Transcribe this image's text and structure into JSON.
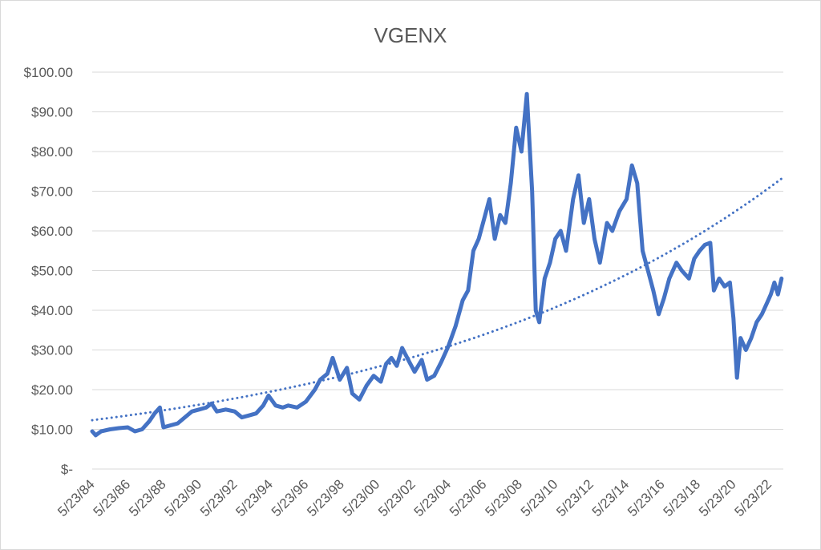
{
  "chart_data": {
    "type": "line",
    "title": "VGENX",
    "xlabel": "",
    "ylabel": "",
    "ylim": [
      0,
      100
    ],
    "y_ticks": [
      {
        "value": 0,
        "label": "$-"
      },
      {
        "value": 10,
        "label": "$10.00"
      },
      {
        "value": 20,
        "label": "$20.00"
      },
      {
        "value": 30,
        "label": "$30.00"
      },
      {
        "value": 40,
        "label": "$40.00"
      },
      {
        "value": 50,
        "label": "$50.00"
      },
      {
        "value": 60,
        "label": "$60.00"
      },
      {
        "value": 70,
        "label": "$70.00"
      },
      {
        "value": 80,
        "label": "$80.00"
      },
      {
        "value": 90,
        "label": "$90.00"
      },
      {
        "value": 100,
        "label": "$100.00"
      }
    ],
    "x_ticks": [
      {
        "year": 1984,
        "label": "5/23/84"
      },
      {
        "year": 1986,
        "label": "5/23/86"
      },
      {
        "year": 1988,
        "label": "5/23/88"
      },
      {
        "year": 1990,
        "label": "5/23/90"
      },
      {
        "year": 1992,
        "label": "5/23/92"
      },
      {
        "year": 1994,
        "label": "5/23/94"
      },
      {
        "year": 1996,
        "label": "5/23/96"
      },
      {
        "year": 1998,
        "label": "5/23/98"
      },
      {
        "year": 2000,
        "label": "5/23/00"
      },
      {
        "year": 2002,
        "label": "5/23/02"
      },
      {
        "year": 2004,
        "label": "5/23/04"
      },
      {
        "year": 2006,
        "label": "5/23/06"
      },
      {
        "year": 2008,
        "label": "5/23/08"
      },
      {
        "year": 2010,
        "label": "5/23/10"
      },
      {
        "year": 2012,
        "label": "5/23/12"
      },
      {
        "year": 2014,
        "label": "5/23/14"
      },
      {
        "year": 2016,
        "label": "5/23/16"
      },
      {
        "year": 2018,
        "label": "5/23/18"
      },
      {
        "year": 2020,
        "label": "5/23/20"
      },
      {
        "year": 2022,
        "label": "5/23/22"
      }
    ],
    "xlim": [
      1984,
      2022.8
    ],
    "grid": true,
    "legend": "none",
    "series": [
      {
        "values": [
          [
            1984.0,
            9.5
          ],
          [
            1984.2,
            8.5
          ],
          [
            1984.5,
            9.5
          ],
          [
            1985.0,
            10.0
          ],
          [
            1985.5,
            10.3
          ],
          [
            1986.0,
            10.5
          ],
          [
            1986.4,
            9.5
          ],
          [
            1986.8,
            10.0
          ],
          [
            1987.2,
            12.0
          ],
          [
            1987.5,
            14.0
          ],
          [
            1987.8,
            15.5
          ],
          [
            1988.0,
            10.5
          ],
          [
            1988.4,
            11.0
          ],
          [
            1988.8,
            11.5
          ],
          [
            1989.2,
            13.0
          ],
          [
            1989.6,
            14.5
          ],
          [
            1990.0,
            15.0
          ],
          [
            1990.4,
            15.5
          ],
          [
            1990.7,
            16.5
          ],
          [
            1991.0,
            14.5
          ],
          [
            1991.5,
            15.0
          ],
          [
            1992.0,
            14.5
          ],
          [
            1992.4,
            13.0
          ],
          [
            1992.8,
            13.5
          ],
          [
            1993.2,
            14.0
          ],
          [
            1993.6,
            16.0
          ],
          [
            1993.9,
            18.5
          ],
          [
            1994.3,
            16.0
          ],
          [
            1994.7,
            15.5
          ],
          [
            1995.0,
            16.0
          ],
          [
            1995.5,
            15.5
          ],
          [
            1996.0,
            17.0
          ],
          [
            1996.5,
            20.0
          ],
          [
            1996.8,
            22.5
          ],
          [
            1997.2,
            24.0
          ],
          [
            1997.5,
            28.0
          ],
          [
            1997.9,
            22.5
          ],
          [
            1998.3,
            25.5
          ],
          [
            1998.6,
            19.0
          ],
          [
            1999.0,
            17.5
          ],
          [
            1999.4,
            21.0
          ],
          [
            1999.8,
            23.5
          ],
          [
            2000.2,
            22.0
          ],
          [
            2000.5,
            26.5
          ],
          [
            2000.8,
            28.0
          ],
          [
            2001.1,
            26.0
          ],
          [
            2001.4,
            30.5
          ],
          [
            2001.8,
            27.0
          ],
          [
            2002.1,
            24.5
          ],
          [
            2002.5,
            27.5
          ],
          [
            2002.8,
            22.5
          ],
          [
            2003.2,
            23.5
          ],
          [
            2003.6,
            27.0
          ],
          [
            2004.0,
            31.0
          ],
          [
            2004.4,
            36.0
          ],
          [
            2004.8,
            42.5
          ],
          [
            2005.1,
            45.0
          ],
          [
            2005.4,
            55.0
          ],
          [
            2005.7,
            58.0
          ],
          [
            2006.0,
            63.0
          ],
          [
            2006.3,
            68.0
          ],
          [
            2006.6,
            58.0
          ],
          [
            2006.9,
            64.0
          ],
          [
            2007.2,
            62.0
          ],
          [
            2007.5,
            72.0
          ],
          [
            2007.8,
            86.0
          ],
          [
            2008.1,
            80.0
          ],
          [
            2008.4,
            94.5
          ],
          [
            2008.7,
            70.0
          ],
          [
            2008.9,
            40.0
          ],
          [
            2009.1,
            37.0
          ],
          [
            2009.4,
            48.0
          ],
          [
            2009.7,
            52.0
          ],
          [
            2010.0,
            58.0
          ],
          [
            2010.3,
            60.0
          ],
          [
            2010.6,
            55.0
          ],
          [
            2011.0,
            68.0
          ],
          [
            2011.3,
            74.0
          ],
          [
            2011.6,
            62.0
          ],
          [
            2011.9,
            68.0
          ],
          [
            2012.2,
            58.0
          ],
          [
            2012.5,
            52.0
          ],
          [
            2012.9,
            62.0
          ],
          [
            2013.2,
            60.0
          ],
          [
            2013.6,
            65.0
          ],
          [
            2014.0,
            68.0
          ],
          [
            2014.3,
            76.5
          ],
          [
            2014.6,
            72.0
          ],
          [
            2014.9,
            55.0
          ],
          [
            2015.2,
            50.0
          ],
          [
            2015.5,
            45.0
          ],
          [
            2015.8,
            39.0
          ],
          [
            2016.1,
            43.0
          ],
          [
            2016.4,
            48.0
          ],
          [
            2016.8,
            52.0
          ],
          [
            2017.1,
            50.0
          ],
          [
            2017.5,
            48.0
          ],
          [
            2017.8,
            53.0
          ],
          [
            2018.1,
            55.0
          ],
          [
            2018.4,
            56.5
          ],
          [
            2018.7,
            57.0
          ],
          [
            2018.9,
            45.0
          ],
          [
            2019.2,
            48.0
          ],
          [
            2019.5,
            46.0
          ],
          [
            2019.8,
            47.0
          ],
          [
            2020.0,
            38.0
          ],
          [
            2020.2,
            23.0
          ],
          [
            2020.4,
            33.0
          ],
          [
            2020.7,
            30.0
          ],
          [
            2021.0,
            33.0
          ],
          [
            2021.3,
            37.0
          ],
          [
            2021.6,
            39.0
          ],
          [
            2021.9,
            42.0
          ],
          [
            2022.1,
            44.0
          ],
          [
            2022.3,
            47.0
          ],
          [
            2022.5,
            44.0
          ],
          [
            2022.7,
            48.0
          ]
        ]
      },
      {
        "kind": "exponential-trendline",
        "values": [
          [
            1984.0,
            12.3
          ],
          [
            2008.0,
            37.0
          ],
          [
            2022.8,
            73.5
          ]
        ]
      }
    ]
  }
}
